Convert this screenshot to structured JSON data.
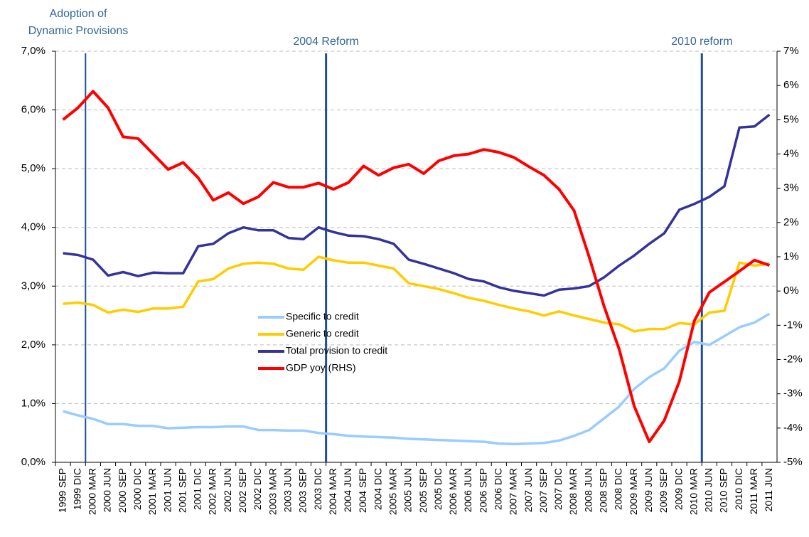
{
  "chart_data": {
    "type": "line",
    "categories": [
      "1999 SEP",
      "1999 DIC",
      "2000 MAR",
      "2000 JUN",
      "2000 SEP",
      "2000 DIC",
      "2001 MAR",
      "2001 JUN",
      "2001 SEP",
      "2001 DIC",
      "2002 MAR",
      "2002 JUN",
      "2002 SEP",
      "2002 DIC",
      "2003 MAR",
      "2003 JUN",
      "2003 SEP",
      "2003 DIC",
      "2004 MAR",
      "2004 JUN",
      "2004 SEP",
      "2004 DIC",
      "2005 MAR",
      "2005 JUN",
      "2005 SEP",
      "2005 DIC",
      "2006 MAR",
      "2006 JUN",
      "2006 SEP",
      "2006 DIC",
      "2007 MAR",
      "2007 JUN",
      "2007 SEP",
      "2007 DIC",
      "2008 MAR",
      "2008 JUN",
      "2008 SEP",
      "2008 DIC",
      "2009 MAR",
      "2009 JUN",
      "2009 SEP",
      "2009 DIC",
      "2010 MAR",
      "2010 JUN",
      "2010 SEP",
      "2010 DIC",
      "2011 MAR",
      "2011 JUN"
    ],
    "series": [
      {
        "name": "Specific to credit",
        "color": "#99ccff",
        "values": [
          0.87,
          0.8,
          0.74,
          0.65,
          0.65,
          0.62,
          0.62,
          0.58,
          0.59,
          0.6,
          0.6,
          0.61,
          0.61,
          0.55,
          0.55,
          0.54,
          0.54,
          0.5,
          0.48,
          0.45,
          0.44,
          0.43,
          0.42,
          0.4,
          0.39,
          0.38,
          0.37,
          0.36,
          0.35,
          0.32,
          0.31,
          0.32,
          0.33,
          0.37,
          0.45,
          0.55,
          0.75,
          0.95,
          1.25,
          1.45,
          1.6,
          1.9,
          2.05,
          2.0,
          2.15,
          2.3,
          2.38,
          2.53
        ]
      },
      {
        "name": "Generic to credit",
        "color": "#ffcc00",
        "values": [
          2.7,
          2.72,
          2.68,
          2.55,
          2.6,
          2.56,
          2.62,
          2.62,
          2.65,
          3.08,
          3.12,
          3.3,
          3.38,
          3.4,
          3.38,
          3.3,
          3.28,
          3.5,
          3.44,
          3.4,
          3.4,
          3.35,
          3.3,
          3.05,
          3.0,
          2.95,
          2.88,
          2.8,
          2.75,
          2.68,
          2.62,
          2.57,
          2.5,
          2.57,
          2.5,
          2.44,
          2.38,
          2.35,
          2.23,
          2.27,
          2.27,
          2.37,
          2.35,
          2.55,
          2.58,
          3.4,
          3.35,
          3.38
        ]
      },
      {
        "name": "Total provision to credit",
        "color": "#333399",
        "values": [
          3.56,
          3.53,
          3.45,
          3.18,
          3.24,
          3.17,
          3.23,
          3.22,
          3.22,
          3.68,
          3.72,
          3.9,
          4.0,
          3.95,
          3.95,
          3.82,
          3.8,
          4.0,
          3.92,
          3.86,
          3.85,
          3.8,
          3.72,
          3.45,
          3.38,
          3.3,
          3.22,
          3.12,
          3.08,
          2.98,
          2.92,
          2.88,
          2.84,
          2.94,
          2.96,
          3.0,
          3.15,
          3.35,
          3.52,
          3.72,
          3.9,
          4.3,
          4.4,
          4.52,
          4.7,
          5.7,
          5.72,
          5.92
        ]
      },
      {
        "name": "GDP yoy (RHS)",
        "color": "#ff0000",
        "axis": "y2",
        "values": [
          5.0,
          5.35,
          5.83,
          5.35,
          4.5,
          4.45,
          4.0,
          3.55,
          3.75,
          3.3,
          2.65,
          2.87,
          2.55,
          2.75,
          3.17,
          3.03,
          3.03,
          3.15,
          2.97,
          3.17,
          3.65,
          3.38,
          3.6,
          3.7,
          3.43,
          3.8,
          3.95,
          4.0,
          4.13,
          4.05,
          3.9,
          3.63,
          3.38,
          2.97,
          2.35,
          1.0,
          -0.45,
          -1.7,
          -3.36,
          -4.4,
          -3.78,
          -2.64,
          -0.87,
          -0.04,
          0.27,
          0.58,
          0.9,
          0.75
        ]
      }
    ],
    "ylim": [
      0,
      7
    ],
    "yticks": [
      {
        "value": 0,
        "label": "0,0%"
      },
      {
        "value": 1,
        "label": "1,0%"
      },
      {
        "value": 2,
        "label": "2,0%"
      },
      {
        "value": 3,
        "label": "3,0%"
      },
      {
        "value": 4,
        "label": "4,0%"
      },
      {
        "value": 5,
        "label": "5,0%"
      },
      {
        "value": 6,
        "label": "6,0%"
      },
      {
        "value": 7,
        "label": "7,0%"
      }
    ],
    "y2lim": [
      -5,
      7
    ],
    "y2ticks": [
      {
        "value": -5,
        "label": "-5%"
      },
      {
        "value": -4,
        "label": "-4%"
      },
      {
        "value": -3,
        "label": "-3%"
      },
      {
        "value": -2,
        "label": "-2%"
      },
      {
        "value": -1,
        "label": "-1%"
      },
      {
        "value": 0,
        "label": "0%"
      },
      {
        "value": 1,
        "label": "1%"
      },
      {
        "value": 2,
        "label": "2%"
      },
      {
        "value": 3,
        "label": "3%"
      },
      {
        "value": 4,
        "label": "4%"
      },
      {
        "value": 5,
        "label": "5%"
      },
      {
        "value": 6,
        "label": "6%"
      },
      {
        "value": 7,
        "label": "7%"
      }
    ],
    "grid": true,
    "annotations": [
      {
        "text": [
          "Adoption of",
          "Dynamic Provisions"
        ],
        "x": "2000 MAR"
      },
      {
        "text": [
          "2004 Reform"
        ],
        "x": "2004 MAR"
      },
      {
        "text": [
          "2010 reform"
        ],
        "x": "2010 JUN"
      }
    ]
  }
}
